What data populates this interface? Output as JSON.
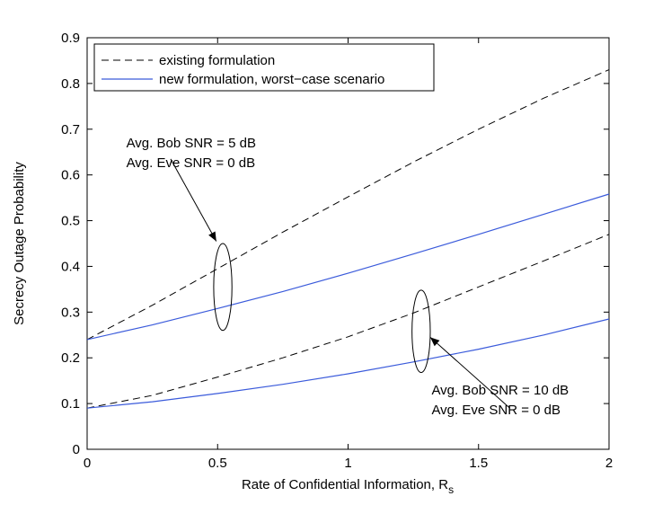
{
  "chart_data": {
    "type": "line",
    "title": "",
    "xlabel": "Rate of Confidential Information, R",
    "xlabel_subscript": "s",
    "ylabel": "Secrecy Outage Probability",
    "xlim": [
      0,
      2
    ],
    "ylim": [
      0,
      0.9
    ],
    "xticks": [
      0,
      0.5,
      1,
      1.5,
      2
    ],
    "xtick_labels": [
      "0",
      "0.5",
      "1",
      "1.5",
      "2"
    ],
    "yticks": [
      0,
      0.1,
      0.2,
      0.3,
      0.4,
      0.5,
      0.6,
      0.7,
      0.8,
      0.9
    ],
    "ytick_labels": [
      "0",
      "0.1",
      "0.2",
      "0.3",
      "0.4",
      "0.5",
      "0.6",
      "0.7",
      "0.8",
      "0.9"
    ],
    "grid": false,
    "legend": {
      "position": "top-left",
      "entries": [
        {
          "label": "existing formulation",
          "style": "dashed",
          "color": "#000000"
        },
        {
          "label": "new formulation, worst−case scenario",
          "style": "solid",
          "color": "#3b5bdb"
        }
      ]
    },
    "series": [
      {
        "name": "existing formulation (Bob SNR 5 dB)",
        "style": "dashed",
        "color": "#000000",
        "x": [
          0,
          0.25,
          0.5,
          0.75,
          1.0,
          1.25,
          1.5,
          1.75,
          2.0
        ],
        "y": [
          0.24,
          0.315,
          0.395,
          0.475,
          0.552,
          0.628,
          0.7,
          0.768,
          0.83
        ]
      },
      {
        "name": "new formulation (Bob SNR 5 dB)",
        "style": "solid",
        "color": "#3b5bdb",
        "x": [
          0,
          0.25,
          0.5,
          0.75,
          1.0,
          1.25,
          1.5,
          1.75,
          2.0
        ],
        "y": [
          0.24,
          0.272,
          0.308,
          0.345,
          0.385,
          0.427,
          0.47,
          0.514,
          0.558
        ]
      },
      {
        "name": "existing formulation (Bob SNR 10 dB)",
        "style": "dashed",
        "color": "#000000",
        "x": [
          0,
          0.25,
          0.5,
          0.75,
          1.0,
          1.25,
          1.5,
          1.75,
          2.0
        ],
        "y": [
          0.09,
          0.118,
          0.158,
          0.2,
          0.246,
          0.298,
          0.355,
          0.412,
          0.47
        ]
      },
      {
        "name": "new formulation (Bob SNR 10 dB)",
        "style": "solid",
        "color": "#3b5bdb",
        "x": [
          0,
          0.25,
          0.5,
          0.75,
          1.0,
          1.25,
          1.5,
          1.75,
          2.0
        ],
        "y": [
          0.09,
          0.104,
          0.122,
          0.142,
          0.165,
          0.191,
          0.219,
          0.25,
          0.285
        ]
      }
    ],
    "annotations": [
      {
        "id": "bob5",
        "lines": [
          "Avg. Bob SNR = 5 dB",
          "Avg. Eve SNR = 0 dB"
        ],
        "ellipse_center": [
          0.52,
          0.355
        ],
        "ellipse_radius": [
          0.035,
          0.095
        ],
        "arrow_from": [
          0.32,
          0.635
        ],
        "arrow_to": [
          0.495,
          0.455
        ],
        "text_anchor": [
          0.15,
          0.66
        ]
      },
      {
        "id": "bob10",
        "lines": [
          "Avg. Bob SNR = 10 dB",
          "Avg. Eve SNR = 0 dB"
        ],
        "ellipse_center": [
          1.28,
          0.258
        ],
        "ellipse_radius": [
          0.035,
          0.09
        ],
        "arrow_from": [
          1.62,
          0.09
        ],
        "arrow_to": [
          1.315,
          0.245
        ],
        "text_anchor": [
          1.32,
          0.12
        ]
      }
    ]
  }
}
